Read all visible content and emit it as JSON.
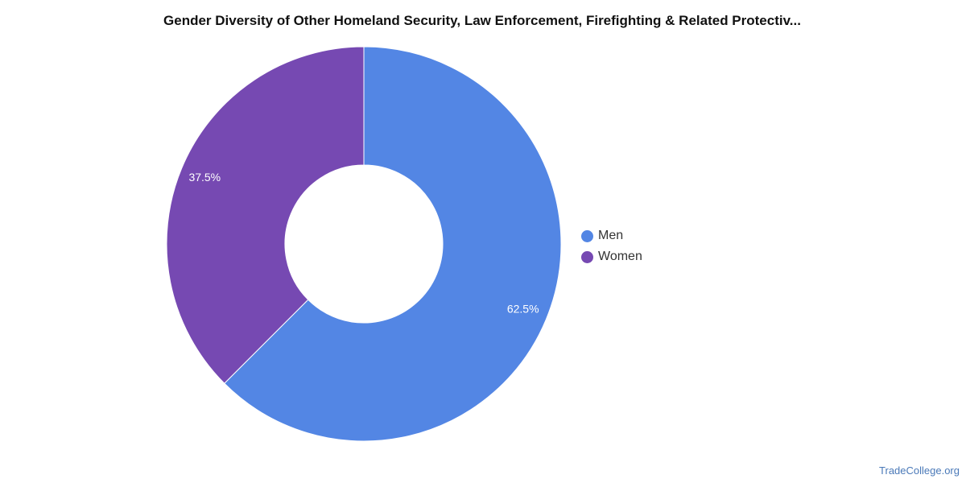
{
  "title": "Gender Diversity of Other Homeland Security, Law Enforcement, Firefighting & Related Protectiv...",
  "watermark": "TradeCollege.org",
  "chart_data": {
    "type": "pie",
    "donut": true,
    "title": "Gender Diversity of Other Homeland Security, Law Enforcement, Firefighting & Related Protectiv...",
    "legend_position": "right",
    "categories": [
      "Men",
      "Women"
    ],
    "values": [
      62.5,
      37.5
    ],
    "data_labels": [
      "62.5%",
      "37.5%"
    ],
    "colors": [
      "#5386e4",
      "#7649b2"
    ]
  },
  "legend": {
    "items": [
      {
        "label": "Men",
        "color": "#5386e4"
      },
      {
        "label": "Women",
        "color": "#7649b2"
      }
    ]
  }
}
